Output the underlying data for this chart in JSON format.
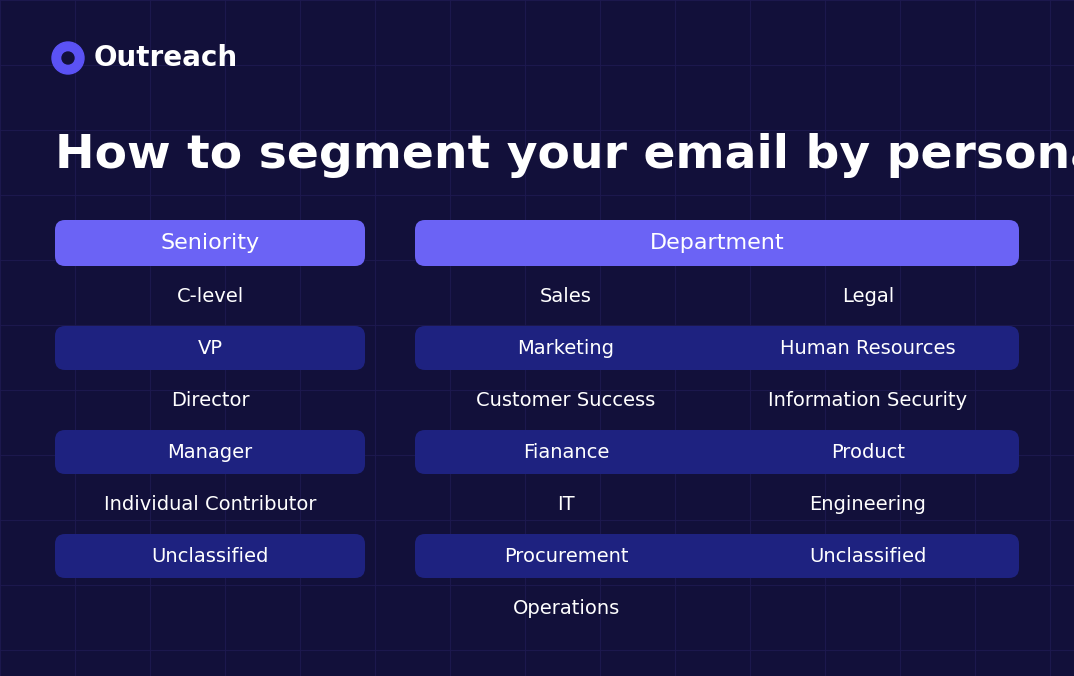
{
  "bg_color": "#12103a",
  "grid_color": "#1e1a50",
  "title": "How to segment your email by persona",
  "title_color": "#ffffff",
  "title_fontsize": 34,
  "logo_text": "Outreach",
  "logo_color": "#ffffff",
  "logo_icon_color": "#5b52f5",
  "header_color": "#6b63f5",
  "header_text_color": "#ffffff",
  "row_color_nobg": "#12103a",
  "row_color_dark": "#1e2280",
  "row_text_color": "#ffffff",
  "seniority_header": "Seniority",
  "seniority_items": [
    "C-level",
    "VP",
    "Director",
    "Manager",
    "Individual Contributor",
    "Unclassified"
  ],
  "seniority_has_bg": [
    false,
    true,
    false,
    true,
    false,
    true
  ],
  "department_header": "Department",
  "dept_left": [
    "Sales",
    "Marketing",
    "Customer Success",
    "Fianance",
    "IT",
    "Procurement",
    "Operations"
  ],
  "dept_right": [
    "Legal",
    "Human Resources",
    "Information Security",
    "Product",
    "Engineering",
    "Unclassified",
    ""
  ],
  "dept_has_bg": [
    false,
    true,
    false,
    true,
    false,
    true,
    false
  ]
}
